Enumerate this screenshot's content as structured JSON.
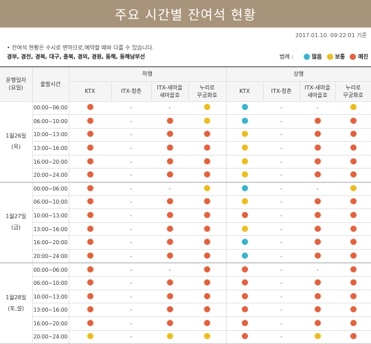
{
  "title": "주요 시간별 잔여석 현황",
  "timestamp": "2017.01.10. 09:22:01 기준",
  "note": "• 잔여석 현황은 수시로 변하므로,예약할 때와 다를 수 있습니다.",
  "routes": "경부, 경전, 경북, 대구, 충북, 경의, 경원, 동해, 동해남부선",
  "legend": {
    "title": "범례 :",
    "items": [
      {
        "label": "많음",
        "status": "many"
      },
      {
        "label": "보통",
        "status": "normal"
      },
      {
        "label": "매진",
        "status": "soldout"
      }
    ]
  },
  "colors": {
    "many": "#38b4cf",
    "normal": "#ecbd1c",
    "soldout": "#e6603c",
    "title_bg": "#a8947a"
  },
  "header": {
    "date_col": "운행일자\n(요일)",
    "time_col": "출발시간",
    "down": "하행",
    "up": "상행",
    "trains": [
      "KTX",
      "ITX-청춘",
      "ITX-새마을\n새마을호",
      "누리로\n무궁화호"
    ]
  },
  "days": [
    {
      "date": "1월26일\n(목)",
      "rows": [
        {
          "time": "00:00~06:00",
          "down": [
            "soldout",
            "-",
            "-",
            "normal"
          ],
          "up": [
            "many",
            "-",
            "-",
            "normal"
          ]
        },
        {
          "time": "06:00~10:00",
          "down": [
            "soldout",
            "-",
            "soldout",
            "normal"
          ],
          "up": [
            "many",
            "-",
            "soldout",
            "soldout"
          ]
        },
        {
          "time": "10:00~13:00",
          "down": [
            "soldout",
            "-",
            "soldout",
            "soldout"
          ],
          "up": [
            "normal",
            "-",
            "soldout",
            "soldout"
          ]
        },
        {
          "time": "13:00~16:00",
          "down": [
            "soldout",
            "-",
            "soldout",
            "soldout"
          ],
          "up": [
            "normal",
            "-",
            "soldout",
            "soldout"
          ]
        },
        {
          "time": "16:00~20:00",
          "down": [
            "soldout",
            "-",
            "soldout",
            "soldout"
          ],
          "up": [
            "normal",
            "-",
            "soldout",
            "soldout"
          ]
        },
        {
          "time": "20:00~24:00",
          "down": [
            "soldout",
            "-",
            "soldout",
            "soldout"
          ],
          "up": [
            "normal",
            "-",
            "soldout",
            "soldout"
          ]
        }
      ]
    },
    {
      "date": "1월27일\n(금)",
      "rows": [
        {
          "time": "00:00~06:00",
          "down": [
            "soldout",
            "-",
            "-",
            "normal"
          ],
          "up": [
            "many",
            "-",
            "-",
            "normal"
          ]
        },
        {
          "time": "06:00~10:00",
          "down": [
            "soldout",
            "-",
            "soldout",
            "soldout"
          ],
          "up": [
            "normal",
            "-",
            "soldout",
            "soldout"
          ]
        },
        {
          "time": "10:00~13:00",
          "down": [
            "soldout",
            "-",
            "soldout",
            "soldout"
          ],
          "up": [
            "soldout",
            "-",
            "soldout",
            "soldout"
          ]
        },
        {
          "time": "13:00~16:00",
          "down": [
            "soldout",
            "-",
            "soldout",
            "soldout"
          ],
          "up": [
            "normal",
            "-",
            "soldout",
            "soldout"
          ]
        },
        {
          "time": "16:00~20:00",
          "down": [
            "soldout",
            "-",
            "soldout",
            "soldout"
          ],
          "up": [
            "many",
            "-",
            "soldout",
            "soldout"
          ]
        },
        {
          "time": "20:00~24:00",
          "down": [
            "soldout",
            "-",
            "soldout",
            "soldout"
          ],
          "up": [
            "many",
            "-",
            "soldout",
            "soldout"
          ]
        }
      ]
    },
    {
      "date": "1월28일\n(토,설)",
      "rows": [
        {
          "time": "00:00~06:00",
          "down": [
            "soldout",
            "-",
            "-",
            "soldout"
          ],
          "up": [
            "soldout",
            "-",
            "-",
            "soldout"
          ]
        },
        {
          "time": "06:00~10:00",
          "down": [
            "soldout",
            "-",
            "soldout",
            "soldout"
          ],
          "up": [
            "soldout",
            "-",
            "soldout",
            "soldout"
          ]
        },
        {
          "time": "10:00~13:00",
          "down": [
            "soldout",
            "-",
            "soldout",
            "soldout"
          ],
          "up": [
            "soldout",
            "-",
            "soldout",
            "soldout"
          ]
        },
        {
          "time": "13:00~16:00",
          "down": [
            "soldout",
            "-",
            "soldout",
            "soldout"
          ],
          "up": [
            "soldout",
            "-",
            "soldout",
            "soldout"
          ]
        },
        {
          "time": "16:00~20:00",
          "down": [
            "soldout",
            "-",
            "soldout",
            "soldout"
          ],
          "up": [
            "soldout",
            "-",
            "soldout",
            "soldout"
          ]
        },
        {
          "time": "20:00~24:00",
          "down": [
            "normal",
            "-",
            "normal",
            "normal"
          ],
          "up": [
            "soldout",
            "-",
            "normal",
            "soldout"
          ]
        }
      ]
    }
  ]
}
